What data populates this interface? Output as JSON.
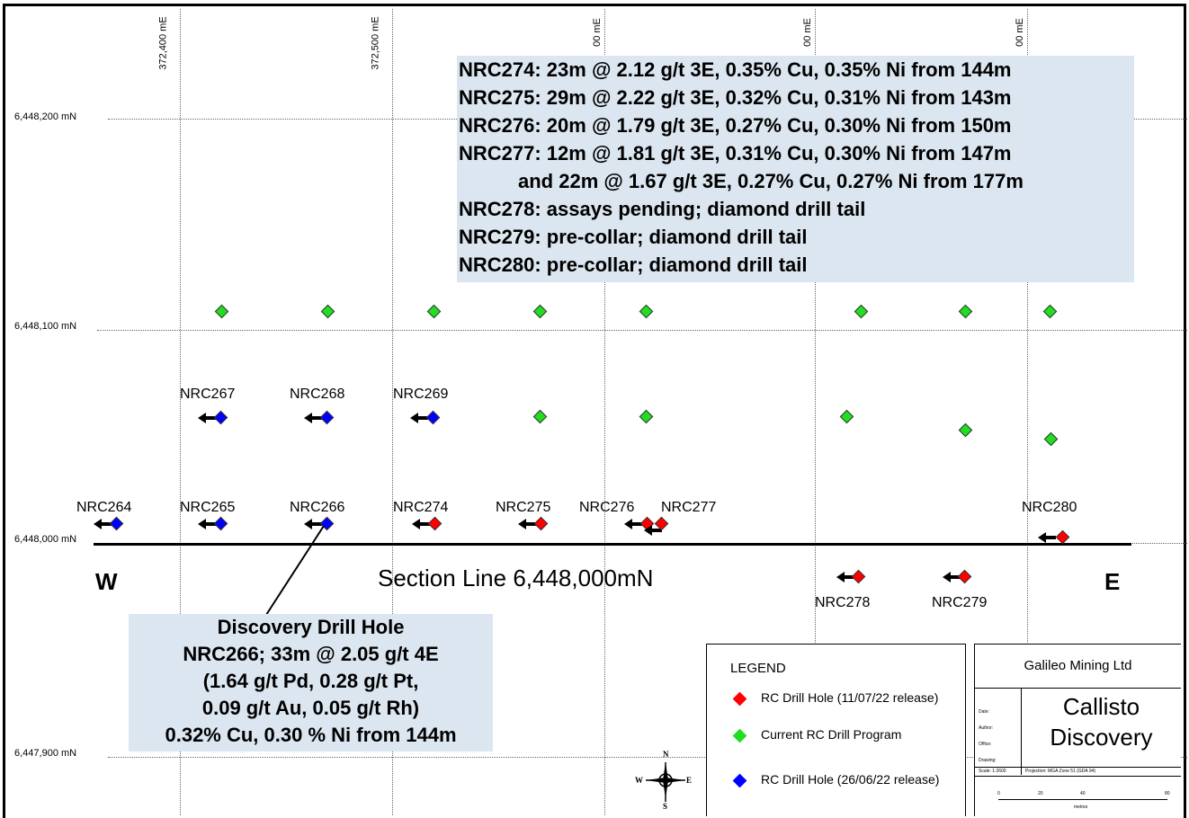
{
  "map": {
    "easting_ticks": [
      "372,400 mE",
      "372,500 mE",
      "00 mE",
      "00 mE",
      "00 mE"
    ],
    "northing_ticks": [
      "6,448,200 mN",
      "6,448,100 mN",
      "6,448,000 mN",
      "6,447,900 mN"
    ],
    "section_label": "Section Line 6,448,000mN",
    "west_label": "W",
    "east_label": "E",
    "colors": {
      "rc_release_0711": "#ff0000",
      "current_program": "#22dd22",
      "rc_release_0626": "#0000ff",
      "info_box_bg": "#dce6f0"
    },
    "drill_holes": [
      {
        "label": "NRC267"
      },
      {
        "label": "NRC268"
      },
      {
        "label": "NRC269"
      },
      {
        "label": "NRC264"
      },
      {
        "label": "NRC265"
      },
      {
        "label": "NRC266"
      },
      {
        "label": "NRC274"
      },
      {
        "label": "NRC275"
      },
      {
        "label": "NRC276"
      },
      {
        "label": "NRC277"
      },
      {
        "label": "NRC280"
      },
      {
        "label": "NRC278"
      },
      {
        "label": "NRC279"
      }
    ]
  },
  "results_box": {
    "lines": [
      "NRC274: 23m @ 2.12 g/t 3E, 0.35% Cu, 0.35% Ni from 144m",
      "NRC275: 29m @ 2.22 g/t 3E, 0.32% Cu, 0.31% Ni from 143m",
      "NRC276: 20m @ 1.79 g/t 3E, 0.27% Cu, 0.30% Ni from 150m",
      "NRC277: 12m @ 1.81 g/t 3E, 0.31% Cu, 0.30% Ni from 147m",
      "and 22m @ 1.67 g/t 3E, 0.27% Cu, 0.27% Ni from 177m",
      "NRC278: assays pending; diamond drill tail",
      "NRC279: pre-collar; diamond drill tail",
      "NRC280: pre-collar; diamond drill tail"
    ]
  },
  "discovery_box": {
    "lines": [
      "Discovery Drill Hole",
      "NRC266; 33m @ 2.05 g/t 4E",
      "(1.64 g/t Pd, 0.28 g/t Pt,",
      "0.09 g/t Au, 0.05 g/t Rh)",
      "0.32% Cu, 0.30 % Ni from 144m"
    ]
  },
  "legend": {
    "title": "LEGEND",
    "items": [
      {
        "label": "RC Drill Hole (11/07/22 release)"
      },
      {
        "label": "Current RC Drill Program"
      },
      {
        "label": "RC Drill Hole (26/06/22 release)"
      }
    ]
  },
  "title_block": {
    "company": "Galileo Mining Ltd",
    "project_line1": "Callisto",
    "project_line2": "Discovery",
    "fields": [
      "Date:",
      "Author:",
      "Office:",
      "Drawing:"
    ],
    "scale": "Scale: 1:2600",
    "projection": "Projection: MGA Zone 51 (GDA 94)",
    "scale_ticks": [
      "0",
      "20",
      "40",
      "80"
    ],
    "scale_unit": "metres"
  },
  "north_arrow": {
    "n": "N",
    "s": "S",
    "e": "E",
    "w": "W"
  }
}
